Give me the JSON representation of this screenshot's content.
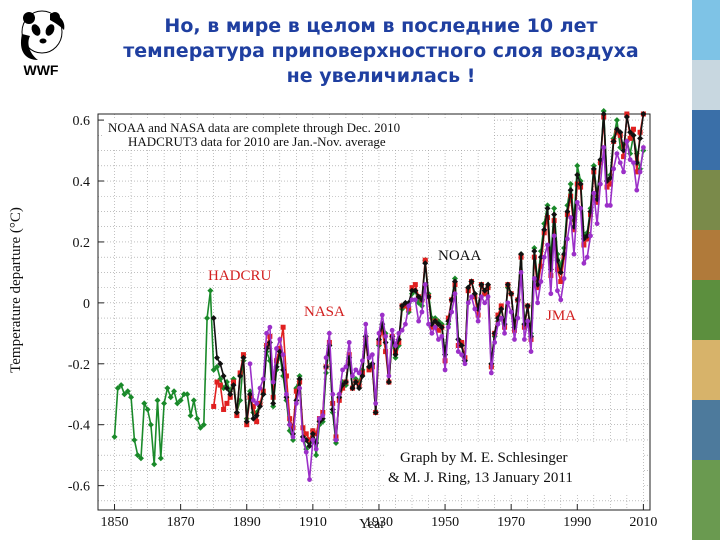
{
  "slide": {
    "title_lines": [
      "Но, в мире в целом в последние 10 лет",
      "температура приповерхностного слоя воздуха",
      "не увеличилась !"
    ]
  },
  "logo": {
    "text": "WWF",
    "icon": "panda-icon"
  },
  "photo_strip": {
    "icon": "nature-photos"
  },
  "chart_data": {
    "type": "line",
    "xlabel": "Year",
    "ylabel": "Temperature departure (°C)",
    "xlim": [
      1845,
      2012
    ],
    "ylim": [
      -0.68,
      0.62
    ],
    "x_ticks": [
      "1850",
      "1870",
      "1890",
      "1910",
      "1930",
      "1950",
      "1970",
      "1990",
      "2010"
    ],
    "y_ticks": [
      "0.6",
      "0.4",
      "0.2",
      "0",
      "-0.2",
      "-0.4",
      "-0.6"
    ],
    "grid": true,
    "annotations": {
      "note_top_1": "NOAA and NASA data are complete through Dec. 2010",
      "note_top_2": "HADCRUT3 data for 2010 are Jan.-Nov. average",
      "credit_1": "Graph by M. E. Schlesinger",
      "credit_2": "& M. J. Ring, 13 January 2011"
    },
    "series_labels": {
      "hadcru": "HADCRU",
      "nasa": "NASA",
      "noaa": "NOAA",
      "jma": "JMA"
    },
    "colors": {
      "hadcru": "#1a8a2a",
      "nasa": "#e02020",
      "noaa": "#111111",
      "jma": "#9b30c8",
      "label_text": "#d21f1f"
    },
    "series": [
      {
        "name": "HADCRU",
        "key": "hadcru",
        "x": [
          1850,
          1851,
          1852,
          1853,
          1854,
          1855,
          1856,
          1857,
          1858,
          1859,
          1860,
          1861,
          1862,
          1863,
          1864,
          1865,
          1866,
          1867,
          1868,
          1869,
          1870,
          1871,
          1872,
          1873,
          1874,
          1875,
          1876,
          1877,
          1878,
          1879,
          1880,
          1881,
          1882,
          1883,
          1884,
          1885,
          1886,
          1887,
          1888,
          1889,
          1890,
          1891,
          1892,
          1893,
          1894,
          1895,
          1896,
          1897,
          1898,
          1899,
          1900,
          1901,
          1902,
          1903,
          1904,
          1905,
          1906,
          1907,
          1908,
          1909,
          1910,
          1911,
          1912,
          1913,
          1914,
          1915,
          1916,
          1917,
          1918,
          1919,
          1920,
          1921,
          1922,
          1923,
          1924,
          1925,
          1926,
          1927,
          1928,
          1929,
          1930,
          1931,
          1932,
          1933,
          1934,
          1935,
          1936,
          1937,
          1938,
          1939,
          1940,
          1941,
          1942,
          1943,
          1944,
          1945,
          1946,
          1947,
          1948,
          1949,
          1950,
          1951,
          1952,
          1953,
          1954,
          1955,
          1956,
          1957,
          1958,
          1959,
          1960,
          1961,
          1962,
          1963,
          1964,
          1965,
          1966,
          1967,
          1968,
          1969,
          1970,
          1971,
          1972,
          1973,
          1974,
          1975,
          1976,
          1977,
          1978,
          1979,
          1980,
          1981,
          1982,
          1983,
          1984,
          1985,
          1986,
          1987,
          1988,
          1989,
          1990,
          1991,
          1992,
          1993,
          1994,
          1995,
          1996,
          1997,
          1998,
          1999,
          2000,
          2001,
          2002,
          2003,
          2004,
          2005,
          2006,
          2007,
          2008,
          2009,
          2010
        ],
        "values": [
          -0.44,
          -0.28,
          -0.27,
          -0.3,
          -0.29,
          -0.31,
          -0.45,
          -0.5,
          -0.51,
          -0.33,
          -0.35,
          -0.4,
          -0.53,
          -0.32,
          -0.51,
          -0.33,
          -0.28,
          -0.31,
          -0.29,
          -0.33,
          -0.32,
          -0.3,
          -0.3,
          -0.37,
          -0.32,
          -0.38,
          -0.41,
          -0.4,
          -0.05,
          0.04,
          -0.22,
          -0.21,
          -0.25,
          -0.28,
          -0.26,
          -0.29,
          -0.25,
          -0.36,
          -0.32,
          -0.19,
          -0.38,
          -0.29,
          -0.36,
          -0.36,
          -0.33,
          -0.3,
          -0.16,
          -0.19,
          -0.34,
          -0.22,
          -0.17,
          -0.24,
          -0.32,
          -0.42,
          -0.45,
          -0.28,
          -0.24,
          -0.44,
          -0.48,
          -0.46,
          -0.42,
          -0.5,
          -0.4,
          -0.39,
          -0.23,
          -0.14,
          -0.36,
          -0.46,
          -0.3,
          -0.26,
          -0.27,
          -0.18,
          -0.28,
          -0.25,
          -0.26,
          -0.22,
          -0.11,
          -0.21,
          -0.2,
          -0.36,
          -0.14,
          -0.07,
          -0.1,
          -0.26,
          -0.12,
          -0.18,
          -0.14,
          -0.02,
          -0.01,
          -0.03,
          0.03,
          0.04,
          0.0,
          -0.01,
          0.14,
          0.03,
          -0.05,
          -0.05,
          -0.06,
          -0.07,
          -0.17,
          -0.07,
          0.01,
          0.08,
          -0.12,
          -0.14,
          -0.19,
          0.05,
          0.07,
          0.03,
          -0.02,
          0.06,
          0.03,
          0.05,
          -0.21,
          -0.11,
          -0.06,
          -0.02,
          -0.07,
          0.05,
          0.03,
          -0.08,
          0.01,
          0.16,
          -0.07,
          -0.01,
          -0.1,
          0.18,
          0.07,
          0.17,
          0.26,
          0.32,
          0.14,
          0.31,
          0.16,
          0.12,
          0.18,
          0.32,
          0.39,
          0.27,
          0.45,
          0.4,
          0.22,
          0.23,
          0.31,
          0.45,
          0.35,
          0.46,
          0.63,
          0.4,
          0.42,
          0.54,
          0.6,
          0.51,
          0.52,
          0.53,
          0.49,
          0.55,
          0.49,
          0.44,
          0.5
        ]
      },
      {
        "name": "NASA",
        "key": "nasa",
        "x": [
          1880,
          1881,
          1882,
          1883,
          1884,
          1885,
          1886,
          1887,
          1888,
          1889,
          1890,
          1891,
          1892,
          1893,
          1894,
          1895,
          1896,
          1897,
          1898,
          1899,
          1900,
          1901,
          1902,
          1903,
          1904,
          1905,
          1906,
          1907,
          1908,
          1909,
          1910,
          1911,
          1912,
          1913,
          1914,
          1915,
          1916,
          1917,
          1918,
          1919,
          1920,
          1921,
          1922,
          1923,
          1924,
          1925,
          1926,
          1927,
          1928,
          1929,
          1930,
          1931,
          1932,
          1933,
          1934,
          1935,
          1936,
          1937,
          1938,
          1939,
          1940,
          1941,
          1942,
          1943,
          1944,
          1945,
          1946,
          1947,
          1948,
          1949,
          1950,
          1951,
          1952,
          1953,
          1954,
          1955,
          1956,
          1957,
          1958,
          1959,
          1960,
          1961,
          1962,
          1963,
          1964,
          1965,
          1966,
          1967,
          1968,
          1969,
          1970,
          1971,
          1972,
          1973,
          1974,
          1975,
          1976,
          1977,
          1978,
          1979,
          1980,
          1981,
          1982,
          1983,
          1984,
          1985,
          1986,
          1987,
          1988,
          1989,
          1990,
          1991,
          1992,
          1993,
          1994,
          1995,
          1996,
          1997,
          1998,
          1999,
          2000,
          2001,
          2002,
          2003,
          2004,
          2005,
          2006,
          2007,
          2008,
          2009,
          2010
        ],
        "values": [
          -0.34,
          -0.26,
          -0.27,
          -0.35,
          -0.33,
          -0.31,
          -0.26,
          -0.37,
          -0.23,
          -0.17,
          -0.4,
          -0.31,
          -0.34,
          -0.39,
          -0.33,
          -0.29,
          -0.14,
          -0.11,
          -0.31,
          -0.19,
          -0.15,
          -0.08,
          -0.24,
          -0.38,
          -0.41,
          -0.29,
          -0.26,
          -0.41,
          -0.43,
          -0.45,
          -0.42,
          -0.43,
          -0.38,
          -0.36,
          -0.21,
          -0.13,
          -0.33,
          -0.44,
          -0.32,
          -0.28,
          -0.26,
          -0.17,
          -0.28,
          -0.26,
          -0.27,
          -0.23,
          -0.12,
          -0.22,
          -0.21,
          -0.36,
          -0.13,
          -0.09,
          -0.16,
          -0.26,
          -0.11,
          -0.16,
          -0.13,
          -0.01,
          -0.01,
          -0.02,
          0.05,
          0.06,
          0.02,
          0.01,
          0.14,
          0.02,
          -0.08,
          -0.06,
          -0.09,
          -0.08,
          -0.19,
          -0.05,
          0.01,
          0.06,
          -0.14,
          -0.13,
          -0.18,
          0.04,
          0.07,
          0.02,
          -0.04,
          0.06,
          0.03,
          0.05,
          -0.21,
          -0.1,
          -0.04,
          -0.01,
          -0.08,
          0.06,
          0.03,
          -0.09,
          0.01,
          0.15,
          -0.08,
          -0.01,
          -0.12,
          0.15,
          0.05,
          0.12,
          0.23,
          0.28,
          0.09,
          0.27,
          0.11,
          0.07,
          0.15,
          0.29,
          0.35,
          0.24,
          0.39,
          0.38,
          0.19,
          0.21,
          0.29,
          0.43,
          0.33,
          0.46,
          0.61,
          0.38,
          0.39,
          0.53,
          0.56,
          0.55,
          0.48,
          0.62,
          0.54,
          0.57,
          0.43,
          0.56,
          0.62
        ]
      },
      {
        "name": "NOAA",
        "key": "noaa",
        "x": [
          1880,
          1881,
          1882,
          1883,
          1884,
          1885,
          1886,
          1887,
          1888,
          1889,
          1890,
          1891,
          1892,
          1893,
          1894,
          1895,
          1896,
          1897,
          1898,
          1899,
          1900,
          1901,
          1902,
          1903,
          1904,
          1905,
          1906,
          1907,
          1908,
          1909,
          1910,
          1911,
          1912,
          1913,
          1914,
          1915,
          1916,
          1917,
          1918,
          1919,
          1920,
          1921,
          1922,
          1923,
          1924,
          1925,
          1926,
          1927,
          1928,
          1929,
          1930,
          1931,
          1932,
          1933,
          1934,
          1935,
          1936,
          1937,
          1938,
          1939,
          1940,
          1941,
          1942,
          1943,
          1944,
          1945,
          1946,
          1947,
          1948,
          1949,
          1950,
          1951,
          1952,
          1953,
          1954,
          1955,
          1956,
          1957,
          1958,
          1959,
          1960,
          1961,
          1962,
          1963,
          1964,
          1965,
          1966,
          1967,
          1968,
          1969,
          1970,
          1971,
          1972,
          1973,
          1974,
          1975,
          1976,
          1977,
          1978,
          1979,
          1980,
          1981,
          1982,
          1983,
          1984,
          1985,
          1986,
          1987,
          1988,
          1989,
          1990,
          1991,
          1992,
          1993,
          1994,
          1995,
          1996,
          1997,
          1998,
          1999,
          2000,
          2001,
          2002,
          2003,
          2004,
          2005,
          2006,
          2007,
          2008,
          2009,
          2010
        ],
        "values": [
          -0.05,
          -0.18,
          -0.2,
          -0.24,
          -0.28,
          -0.3,
          -0.27,
          -0.36,
          -0.24,
          -0.18,
          -0.39,
          -0.3,
          -0.38,
          -0.37,
          -0.34,
          -0.3,
          -0.15,
          -0.13,
          -0.33,
          -0.21,
          -0.16,
          -0.22,
          -0.31,
          -0.4,
          -0.43,
          -0.32,
          -0.25,
          -0.44,
          -0.45,
          -0.47,
          -0.43,
          -0.46,
          -0.39,
          -0.38,
          -0.21,
          -0.14,
          -0.35,
          -0.45,
          -0.31,
          -0.27,
          -0.26,
          -0.18,
          -0.28,
          -0.26,
          -0.28,
          -0.24,
          -0.11,
          -0.21,
          -0.2,
          -0.36,
          -0.12,
          -0.07,
          -0.13,
          -0.26,
          -0.11,
          -0.17,
          -0.12,
          -0.01,
          0.0,
          0.0,
          0.04,
          0.04,
          0.02,
          0.01,
          0.13,
          0.02,
          -0.07,
          -0.06,
          -0.07,
          -0.08,
          -0.17,
          -0.06,
          0.01,
          0.07,
          -0.12,
          -0.14,
          -0.19,
          0.05,
          0.07,
          0.03,
          -0.02,
          0.06,
          0.04,
          0.06,
          -0.2,
          -0.1,
          -0.05,
          -0.02,
          -0.07,
          0.06,
          0.03,
          -0.08,
          0.01,
          0.16,
          -0.07,
          -0.01,
          -0.11,
          0.17,
          0.06,
          0.15,
          0.24,
          0.31,
          0.11,
          0.29,
          0.14,
          0.1,
          0.16,
          0.3,
          0.37,
          0.25,
          0.42,
          0.39,
          0.21,
          0.22,
          0.3,
          0.44,
          0.34,
          0.47,
          0.62,
          0.4,
          0.41,
          0.53,
          0.57,
          0.56,
          0.5,
          0.61,
          0.56,
          0.55,
          0.46,
          0.54,
          0.62
        ]
      },
      {
        "name": "JMA",
        "key": "jma",
        "x": [
          1891,
          1892,
          1893,
          1894,
          1895,
          1896,
          1897,
          1898,
          1899,
          1900,
          1901,
          1902,
          1903,
          1904,
          1905,
          1906,
          1907,
          1908,
          1909,
          1910,
          1911,
          1912,
          1913,
          1914,
          1915,
          1916,
          1917,
          1918,
          1919,
          1920,
          1921,
          1922,
          1923,
          1924,
          1925,
          1926,
          1927,
          1928,
          1929,
          1930,
          1931,
          1932,
          1933,
          1934,
          1935,
          1936,
          1937,
          1938,
          1939,
          1940,
          1941,
          1942,
          1943,
          1944,
          1945,
          1946,
          1947,
          1948,
          1949,
          1950,
          1951,
          1952,
          1953,
          1954,
          1955,
          1956,
          1957,
          1958,
          1959,
          1960,
          1961,
          1962,
          1963,
          1964,
          1965,
          1966,
          1967,
          1968,
          1969,
          1970,
          1971,
          1972,
          1973,
          1974,
          1975,
          1976,
          1977,
          1978,
          1979,
          1980,
          1981,
          1982,
          1983,
          1984,
          1985,
          1986,
          1987,
          1988,
          1989,
          1990,
          1991,
          1992,
          1993,
          1994,
          1995,
          1996,
          1997,
          1998,
          1999,
          2000,
          2001,
          2002,
          2003,
          2004,
          2005,
          2006,
          2007,
          2008,
          2009,
          2010
        ],
        "values": [
          -0.2,
          -0.32,
          -0.33,
          -0.28,
          -0.25,
          -0.1,
          -0.08,
          -0.26,
          -0.15,
          -0.12,
          -0.17,
          -0.3,
          -0.4,
          -0.44,
          -0.33,
          -0.28,
          -0.45,
          -0.49,
          -0.58,
          -0.45,
          -0.48,
          -0.38,
          -0.37,
          -0.18,
          -0.1,
          -0.3,
          -0.45,
          -0.3,
          -0.22,
          -0.21,
          -0.13,
          -0.24,
          -0.22,
          -0.23,
          -0.19,
          -0.07,
          -0.18,
          -0.17,
          -0.33,
          -0.1,
          -0.04,
          -0.11,
          -0.24,
          -0.09,
          -0.14,
          -0.1,
          -0.09,
          -0.07,
          -0.01,
          0.01,
          0.01,
          -0.06,
          -0.03,
          0.06,
          -0.07,
          -0.1,
          -0.08,
          -0.12,
          -0.11,
          -0.22,
          -0.08,
          -0.03,
          0.03,
          -0.16,
          -0.17,
          -0.2,
          0.0,
          0.02,
          -0.02,
          -0.06,
          0.02,
          0.0,
          0.02,
          -0.23,
          -0.13,
          -0.07,
          -0.05,
          -0.1,
          0.0,
          -0.03,
          -0.12,
          -0.05,
          0.1,
          -0.12,
          -0.06,
          -0.16,
          0.08,
          0.0,
          0.07,
          0.15,
          0.19,
          0.03,
          0.22,
          0.04,
          0.01,
          0.08,
          0.21,
          0.28,
          0.16,
          0.33,
          0.31,
          0.13,
          0.15,
          0.22,
          0.36,
          0.26,
          0.39,
          0.51,
          0.32,
          0.32,
          0.44,
          0.49,
          0.46,
          0.43,
          0.53,
          0.47,
          0.46,
          0.37,
          0.43,
          0.51
        ]
      }
    ]
  }
}
